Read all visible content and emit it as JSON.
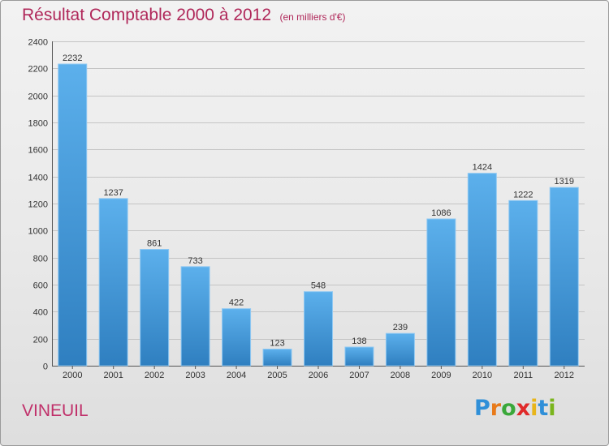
{
  "header": {
    "title": "Résultat Comptable 2000 à 2012",
    "subtitle": "(en milliers d'€)"
  },
  "location": "VINEUIL",
  "brand": {
    "letters": [
      "P",
      "r",
      "o",
      "x",
      "i",
      "t",
      "i"
    ],
    "colors": [
      "#2f8fd8",
      "#e87a1a",
      "#3aa83a",
      "#e02a2a",
      "#e8b51a",
      "#2f8fd8",
      "#7ab51d"
    ]
  },
  "chart_data": {
    "type": "bar",
    "title": "Résultat Comptable 2000 à 2012",
    "subtitle": "(en milliers d'€)",
    "xlabel": "",
    "ylabel": "",
    "categories": [
      "2000",
      "2001",
      "2002",
      "2003",
      "2004",
      "2005",
      "2006",
      "2007",
      "2008",
      "2009",
      "2010",
      "2011",
      "2012"
    ],
    "values": [
      2232,
      1237,
      861,
      733,
      422,
      123,
      548,
      138,
      239,
      1086,
      1424,
      1222,
      1319
    ],
    "ylim": [
      0,
      2400
    ],
    "yticks": [
      0,
      200,
      400,
      600,
      800,
      1000,
      1200,
      1400,
      1600,
      1800,
      2000,
      2200,
      2400
    ],
    "grid": true,
    "legend": "none",
    "bar_color_top": "#5cb0ec",
    "bar_color_bottom": "#2f7fc0"
  }
}
